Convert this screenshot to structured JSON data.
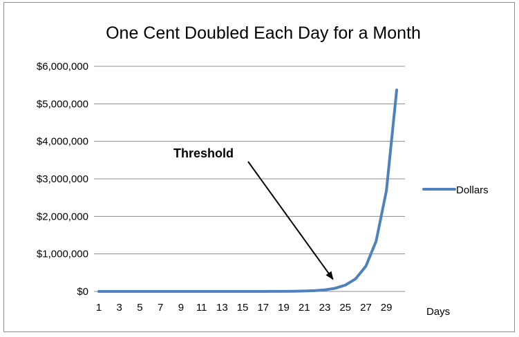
{
  "chart_data": {
    "type": "line",
    "title": "One Cent Doubled Each Day for a Month",
    "xlabel": "Days",
    "ylabel": "",
    "x": [
      1,
      2,
      3,
      4,
      5,
      6,
      7,
      8,
      9,
      10,
      11,
      12,
      13,
      14,
      15,
      16,
      17,
      18,
      19,
      20,
      21,
      22,
      23,
      24,
      25,
      26,
      27,
      28,
      29,
      30
    ],
    "x_tick_labels": [
      "1",
      "3",
      "5",
      "7",
      "9",
      "11",
      "13",
      "15",
      "17",
      "19",
      "21",
      "23",
      "25",
      "27",
      "29"
    ],
    "y_tick_labels": [
      "$0",
      "$1,000,000",
      "$2,000,000",
      "$3,000,000",
      "$4,000,000",
      "$5,000,000",
      "$6,000,000"
    ],
    "ylim": [
      0,
      6000000
    ],
    "grid": true,
    "legend": "right",
    "series": [
      {
        "name": "Dollars",
        "color": "#4f81bd",
        "values": [
          0.01,
          0.02,
          0.04,
          0.08,
          0.16,
          0.32,
          0.64,
          1.28,
          2.56,
          5.12,
          10.24,
          20.48,
          40.96,
          81.92,
          163.84,
          327.68,
          655.36,
          1310.72,
          2621.44,
          5242.88,
          10485.76,
          20971.52,
          41943.04,
          83886.08,
          167772.16,
          335544.32,
          671088.64,
          1342177.28,
          2684354.56,
          5368709.12
        ]
      }
    ],
    "annotations": [
      {
        "text": "Threshold",
        "x": 24
      }
    ]
  }
}
